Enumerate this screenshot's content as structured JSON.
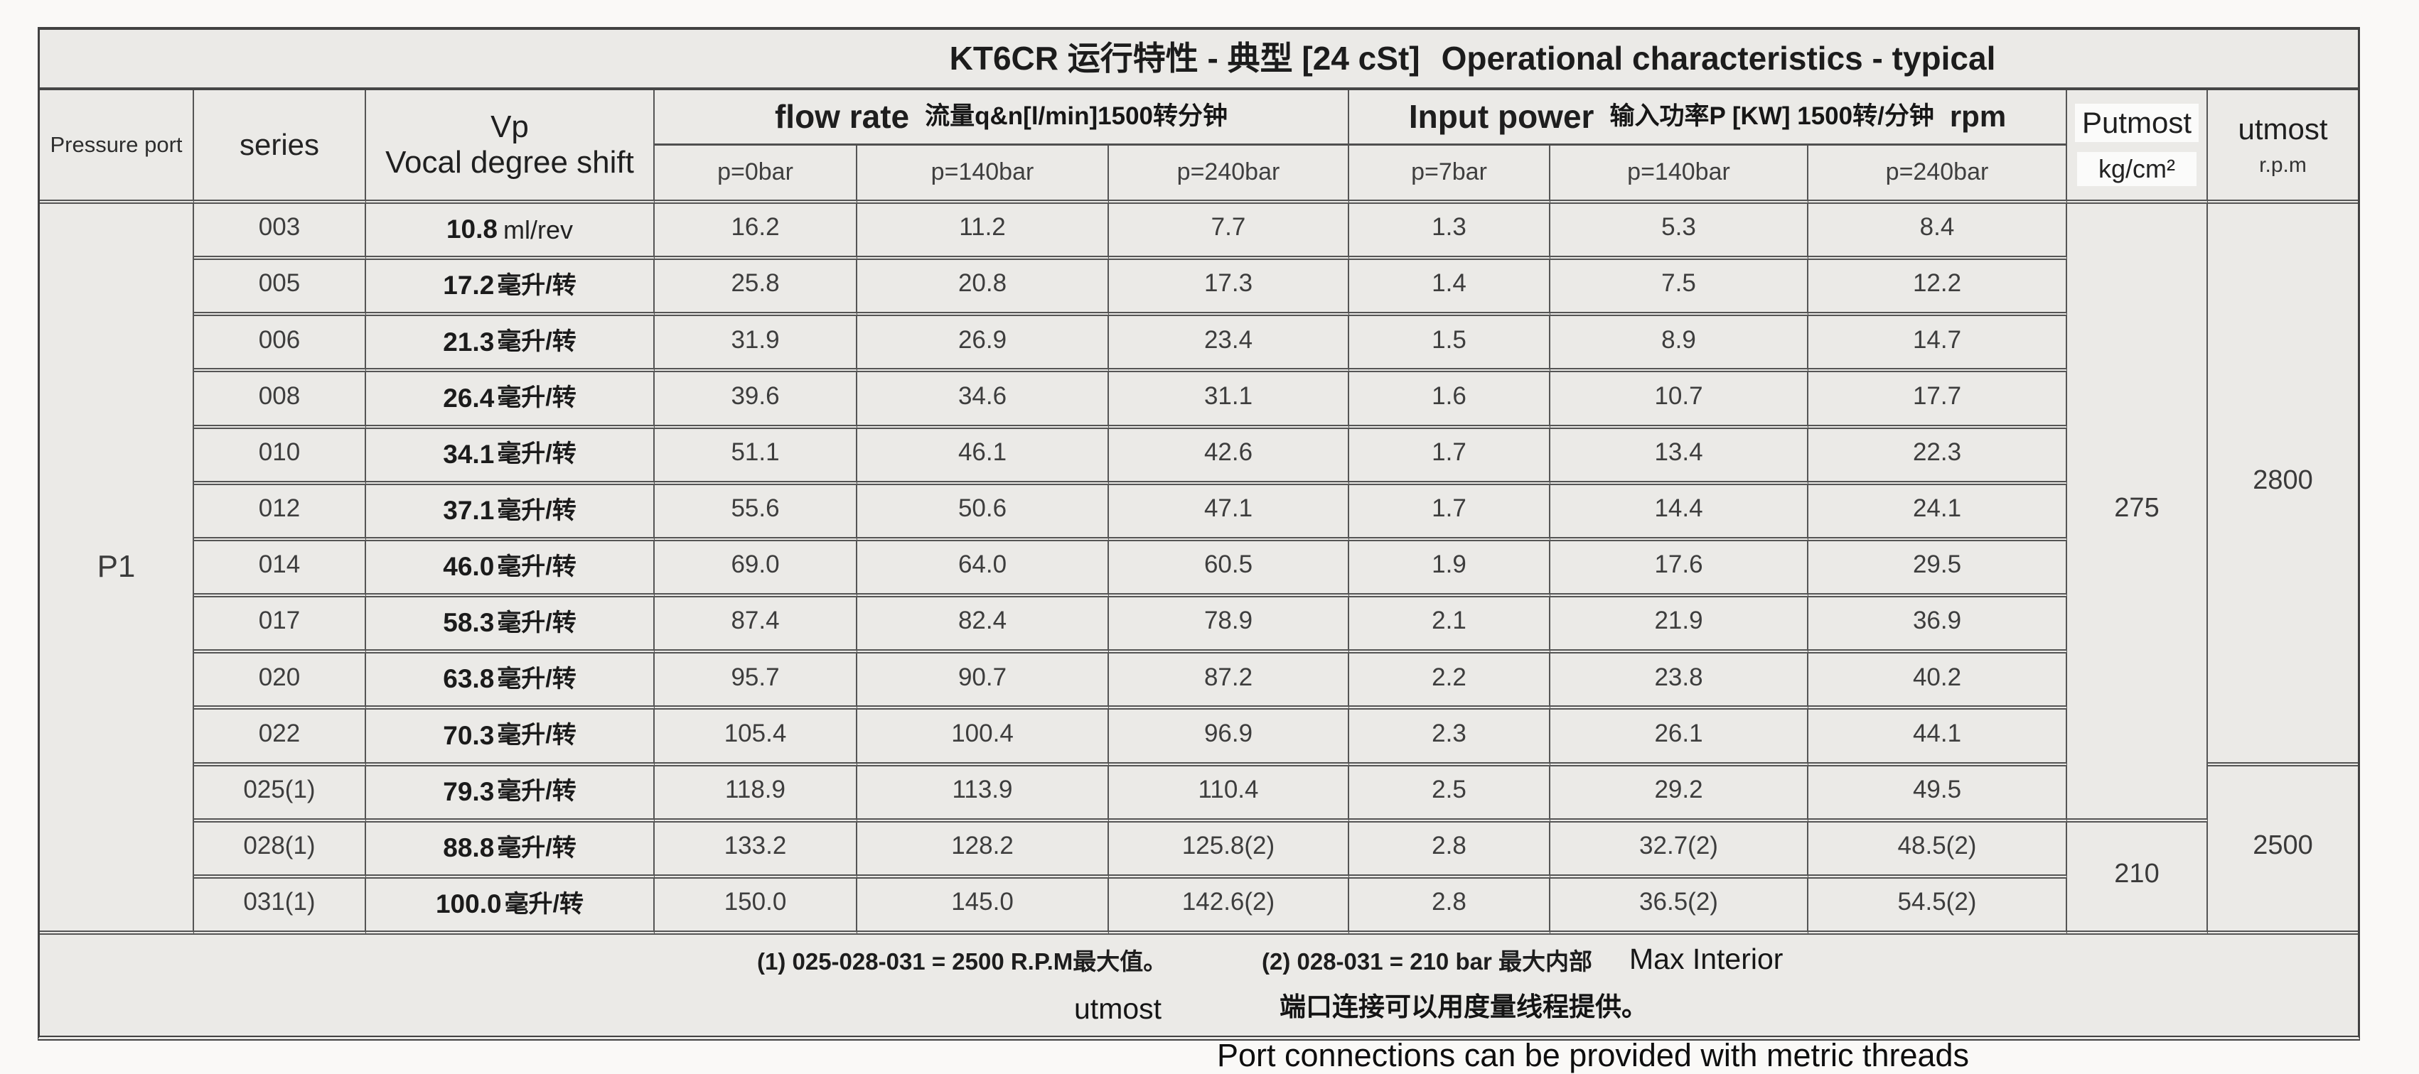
{
  "title": {
    "zh": "KT6CR 运行特性 - 典型 [24 cSt]",
    "en": "Operational characteristics - typical"
  },
  "header": {
    "pressure_port": "Pressure port",
    "series": "series",
    "vp_line1": "Vp",
    "vp_line2": "Vocal degree shift",
    "flow": {
      "en": "flow rate",
      "zh": "流量q&n[l/min]1500转分钟",
      "cols": [
        "p=0bar",
        "p=140bar",
        "p=240bar"
      ]
    },
    "power": {
      "en": "Input power",
      "zh": "输入功率P [KW] 1500转/分钟",
      "rpm": "rpm",
      "cols": [
        "p=7bar",
        "p=140bar",
        "p=240bar"
      ]
    },
    "putmost": {
      "label": "Putmost",
      "unit": "kg/cm²"
    },
    "utmost": {
      "label": "utmost",
      "unit": "r.p.m"
    }
  },
  "body": {
    "pressure_port": "P1",
    "rows": [
      {
        "series": "003",
        "vp": "10.8",
        "vp_unit": "ml/rev",
        "flow": [
          "16.2",
          "11.2",
          "7.7"
        ],
        "power": [
          "1.3",
          "5.3",
          "8.4"
        ]
      },
      {
        "series": "005",
        "vp": "17.2",
        "vp_unit": "毫升/转",
        "flow": [
          "25.8",
          "20.8",
          "17.3"
        ],
        "power": [
          "1.4",
          "7.5",
          "12.2"
        ]
      },
      {
        "series": "006",
        "vp": "21.3",
        "vp_unit": "毫升/转",
        "flow": [
          "31.9",
          "26.9",
          "23.4"
        ],
        "power": [
          "1.5",
          "8.9",
          "14.7"
        ]
      },
      {
        "series": "008",
        "vp": "26.4",
        "vp_unit": "毫升/转",
        "flow": [
          "39.6",
          "34.6",
          "31.1"
        ],
        "power": [
          "1.6",
          "10.7",
          "17.7"
        ]
      },
      {
        "series": "010",
        "vp": "34.1",
        "vp_unit": "毫升/转",
        "flow": [
          "51.1",
          "46.1",
          "42.6"
        ],
        "power": [
          "1.7",
          "13.4",
          "22.3"
        ]
      },
      {
        "series": "012",
        "vp": "37.1",
        "vp_unit": "毫升/转",
        "flow": [
          "55.6",
          "50.6",
          "47.1"
        ],
        "power": [
          "1.7",
          "14.4",
          "24.1"
        ]
      },
      {
        "series": "014",
        "vp": "46.0",
        "vp_unit": "毫升/转",
        "flow": [
          "69.0",
          "64.0",
          "60.5"
        ],
        "power": [
          "1.9",
          "17.6",
          "29.5"
        ]
      },
      {
        "series": "017",
        "vp": "58.3",
        "vp_unit": "毫升/转",
        "flow": [
          "87.4",
          "82.4",
          "78.9"
        ],
        "power": [
          "2.1",
          "21.9",
          "36.9"
        ]
      },
      {
        "series": "020",
        "vp": "63.8",
        "vp_unit": "毫升/转",
        "flow": [
          "95.7",
          "90.7",
          "87.2"
        ],
        "power": [
          "2.2",
          "23.8",
          "40.2"
        ]
      },
      {
        "series": "022",
        "vp": "70.3",
        "vp_unit": "毫升/转",
        "flow": [
          "105.4",
          "100.4",
          "96.9"
        ],
        "power": [
          "2.3",
          "26.1",
          "44.1"
        ]
      },
      {
        "series": "025(1)",
        "vp": "79.3",
        "vp_unit": "毫升/转",
        "flow": [
          "118.9",
          "113.9",
          "110.4"
        ],
        "power": [
          "2.5",
          "29.2",
          "49.5"
        ]
      },
      {
        "series": "028(1)",
        "vp": "88.8",
        "vp_unit": "毫升/转",
        "flow": [
          "133.2",
          "128.2",
          "125.8(2)"
        ],
        "power": [
          "2.8",
          "32.7(2)",
          "48.5(2)"
        ]
      },
      {
        "series": "031(1)",
        "vp": "100.0",
        "vp_unit": "毫升/转",
        "flow": [
          "150.0",
          "145.0",
          "142.6(2)"
        ],
        "power": [
          "2.8",
          "36.5(2)",
          "54.5(2)"
        ]
      }
    ],
    "putmost_spans": [
      {
        "value": "275",
        "row_span": 11
      },
      {
        "value": "210",
        "row_span": 2
      }
    ],
    "utmost_spans": [
      {
        "value": "2800",
        "row_span": 10
      },
      {
        "value": "2500",
        "row_span": 3
      }
    ]
  },
  "footnotes": {
    "note1": "(1)  025-028-031 = 2500 R.P.M最大值。",
    "note2": "(2)  028-031 = 210 bar 最大内部",
    "max_interior": "Max Interior",
    "utmost_word": "utmost",
    "port_note_zh": "端口连接可以用度量线程提供。",
    "port_note_en": "Port connections can be provided with metric threads"
  }
}
